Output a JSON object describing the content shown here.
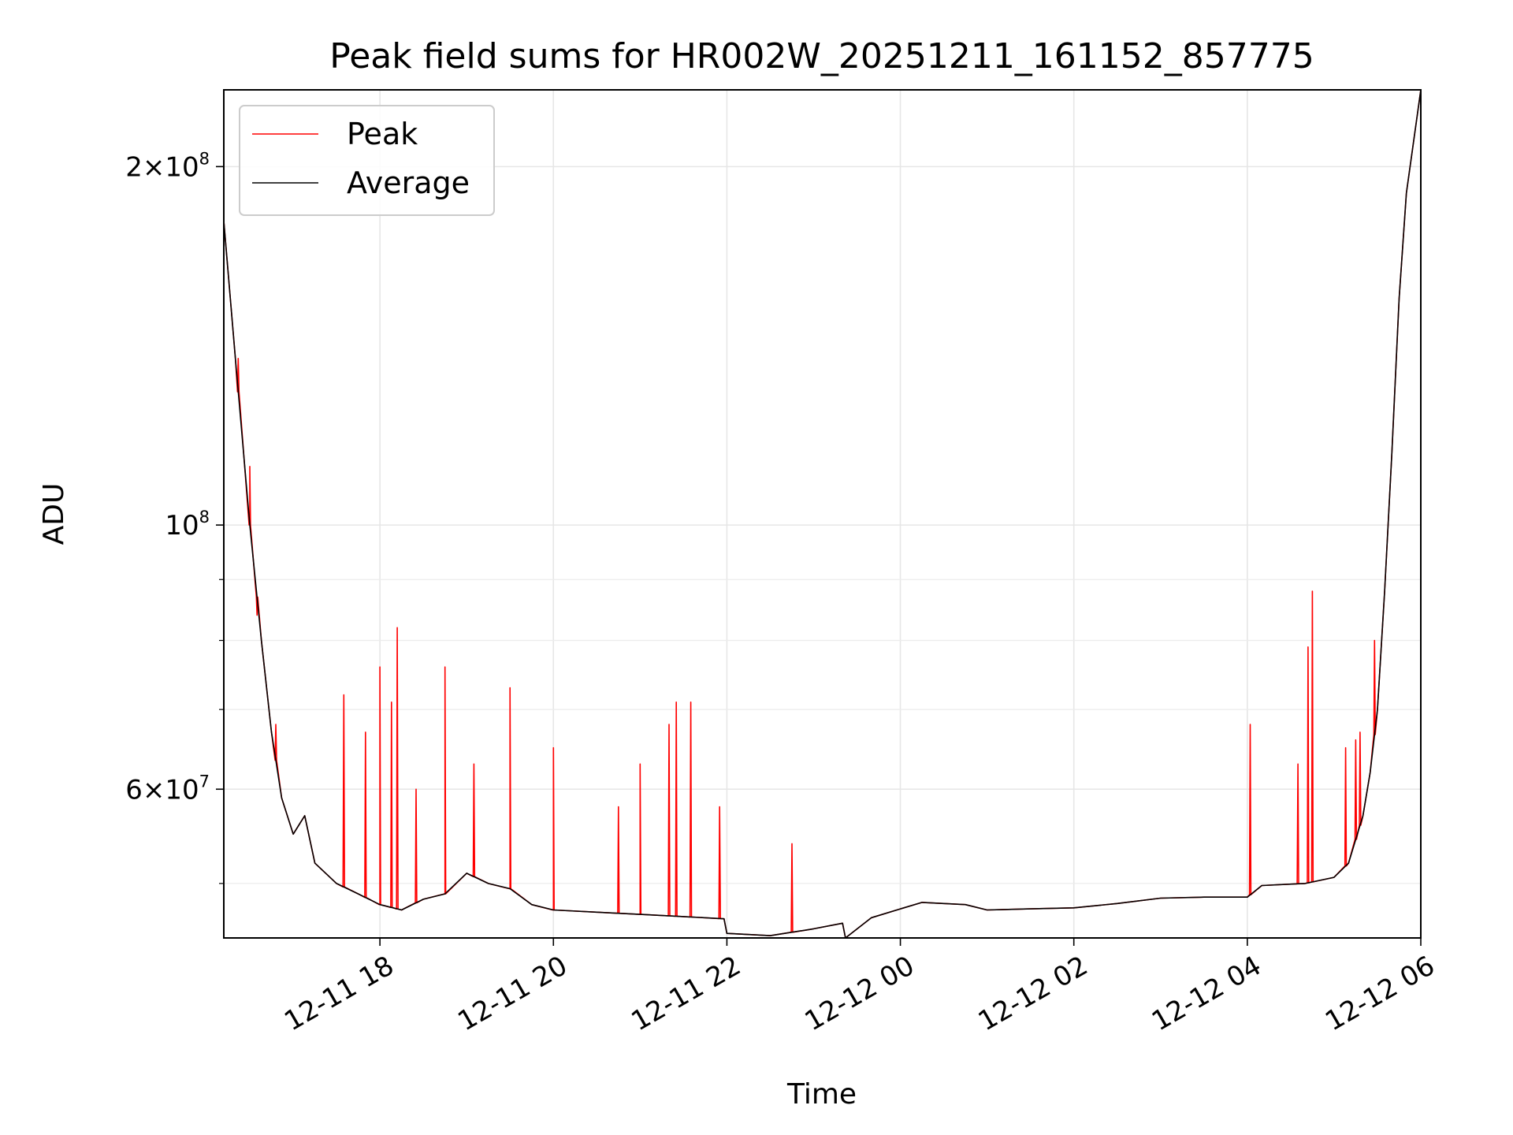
{
  "chart_data": {
    "type": "line",
    "title": "Peak field sums for HR002W_20251211_161152_857775",
    "xlabel": "Time",
    "ylabel": "ADU",
    "y_scale": "log",
    "xlim": [
      "2025-12-11 16:12",
      "2025-12-12 06:00"
    ],
    "ylim": [
      45000000,
      232000000
    ],
    "x_ticks": [
      "12-11 18",
      "12-11 20",
      "12-11 22",
      "12-12 00",
      "12-12 02",
      "12-12 04",
      "12-12 06"
    ],
    "y_tick_labels": [
      {
        "value": 60000000,
        "mantissa": "6",
        "times": "×",
        "base": "10",
        "exp": "7"
      },
      {
        "value": 100000000,
        "mantissa": "",
        "times": "",
        "base": "10",
        "exp": "8"
      },
      {
        "value": 200000000,
        "mantissa": "2",
        "times": "×",
        "base": "10",
        "exp": "8"
      }
    ],
    "y_minor_ticks": [
      50000000,
      70000000,
      80000000,
      90000000
    ],
    "grid": true,
    "legend": {
      "placement": "top-left"
    },
    "series": [
      {
        "name": "Average",
        "color": "#000000"
      },
      {
        "name": "Peak",
        "color": "#ff0000"
      }
    ],
    "average_points": [
      [
        "2025-12-11 16:12",
        180000000
      ],
      [
        "2025-12-11 16:20",
        138000000
      ],
      [
        "2025-12-11 16:30",
        100000000
      ],
      [
        "2025-12-11 16:38",
        80000000
      ],
      [
        "2025-12-11 16:45",
        67000000
      ],
      [
        "2025-12-11 16:52",
        59000000
      ],
      [
        "2025-12-11 17:00",
        55000000
      ],
      [
        "2025-12-11 17:08",
        57000000
      ],
      [
        "2025-12-11 17:15",
        52000000
      ],
      [
        "2025-12-11 17:30",
        50000000
      ],
      [
        "2025-12-11 17:45",
        49000000
      ],
      [
        "2025-12-11 18:00",
        48000000
      ],
      [
        "2025-12-11 18:15",
        47500000
      ],
      [
        "2025-12-11 18:30",
        48500000
      ],
      [
        "2025-12-11 18:45",
        49000000
      ],
      [
        "2025-12-11 19:00",
        51000000
      ],
      [
        "2025-12-11 19:15",
        50000000
      ],
      [
        "2025-12-11 19:30",
        49500000
      ],
      [
        "2025-12-11 19:45",
        48000000
      ],
      [
        "2025-12-11 20:00",
        47500000
      ],
      [
        "2025-12-11 20:30",
        47300000
      ],
      [
        "2025-12-11 21:00",
        47100000
      ],
      [
        "2025-12-11 21:30",
        46900000
      ],
      [
        "2025-12-11 21:58",
        46700000
      ],
      [
        "2025-12-11 22:00",
        45400000
      ],
      [
        "2025-12-11 22:30",
        45200000
      ],
      [
        "2025-12-11 23:00",
        45800000
      ],
      [
        "2025-12-11 23:20",
        46300000
      ],
      [
        "2025-12-11 23:22",
        45000000
      ],
      [
        "2025-12-11 23:40",
        46800000
      ],
      [
        "2025-12-12 00:00",
        47600000
      ],
      [
        "2025-12-12 00:15",
        48200000
      ],
      [
        "2025-12-12 00:45",
        48000000
      ],
      [
        "2025-12-12 01:00",
        47500000
      ],
      [
        "2025-12-12 01:30",
        47600000
      ],
      [
        "2025-12-12 02:00",
        47700000
      ],
      [
        "2025-12-12 02:30",
        48100000
      ],
      [
        "2025-12-12 03:00",
        48600000
      ],
      [
        "2025-12-12 03:30",
        48700000
      ],
      [
        "2025-12-12 04:00",
        48700000
      ],
      [
        "2025-12-12 04:10",
        49800000
      ],
      [
        "2025-12-12 04:40",
        50000000
      ],
      [
        "2025-12-12 05:00",
        50600000
      ],
      [
        "2025-12-12 05:10",
        52000000
      ],
      [
        "2025-12-12 05:20",
        57000000
      ],
      [
        "2025-12-12 05:25",
        62000000
      ],
      [
        "2025-12-12 05:30",
        70000000
      ],
      [
        "2025-12-12 05:35",
        88000000
      ],
      [
        "2025-12-12 05:40",
        115000000
      ],
      [
        "2025-12-12 05:45",
        155000000
      ],
      [
        "2025-12-12 05:50",
        190000000
      ],
      [
        "2025-12-12 06:00",
        232000000
      ]
    ],
    "peak_spikes": [
      [
        "2025-12-11 16:22",
        138000000
      ],
      [
        "2025-12-11 16:30",
        112000000
      ],
      [
        "2025-12-11 16:35",
        84000000
      ],
      [
        "2025-12-11 16:48",
        68000000
      ],
      [
        "2025-12-11 17:35",
        72000000
      ],
      [
        "2025-12-11 17:50",
        67000000
      ],
      [
        "2025-12-11 18:00",
        76000000
      ],
      [
        "2025-12-11 18:08",
        71000000
      ],
      [
        "2025-12-11 18:12",
        82000000
      ],
      [
        "2025-12-11 18:25",
        60000000
      ],
      [
        "2025-12-11 18:45",
        76000000
      ],
      [
        "2025-12-11 19:05",
        63000000
      ],
      [
        "2025-12-11 19:30",
        73000000
      ],
      [
        "2025-12-11 20:00",
        65000000
      ],
      [
        "2025-12-11 20:45",
        58000000
      ],
      [
        "2025-12-11 21:00",
        63000000
      ],
      [
        "2025-12-11 21:20",
        68000000
      ],
      [
        "2025-12-11 21:25",
        71000000
      ],
      [
        "2025-12-11 21:35",
        71000000
      ],
      [
        "2025-12-11 21:55",
        58000000
      ],
      [
        "2025-12-11 22:45",
        54000000
      ],
      [
        "2025-12-12 04:02",
        68000000
      ],
      [
        "2025-12-12 04:35",
        63000000
      ],
      [
        "2025-12-12 04:42",
        79000000
      ],
      [
        "2025-12-12 04:45",
        88000000
      ],
      [
        "2025-12-12 05:08",
        65000000
      ],
      [
        "2025-12-12 05:15",
        66000000
      ],
      [
        "2025-12-12 05:18",
        67000000
      ],
      [
        "2025-12-12 05:28",
        80000000
      ]
    ]
  }
}
